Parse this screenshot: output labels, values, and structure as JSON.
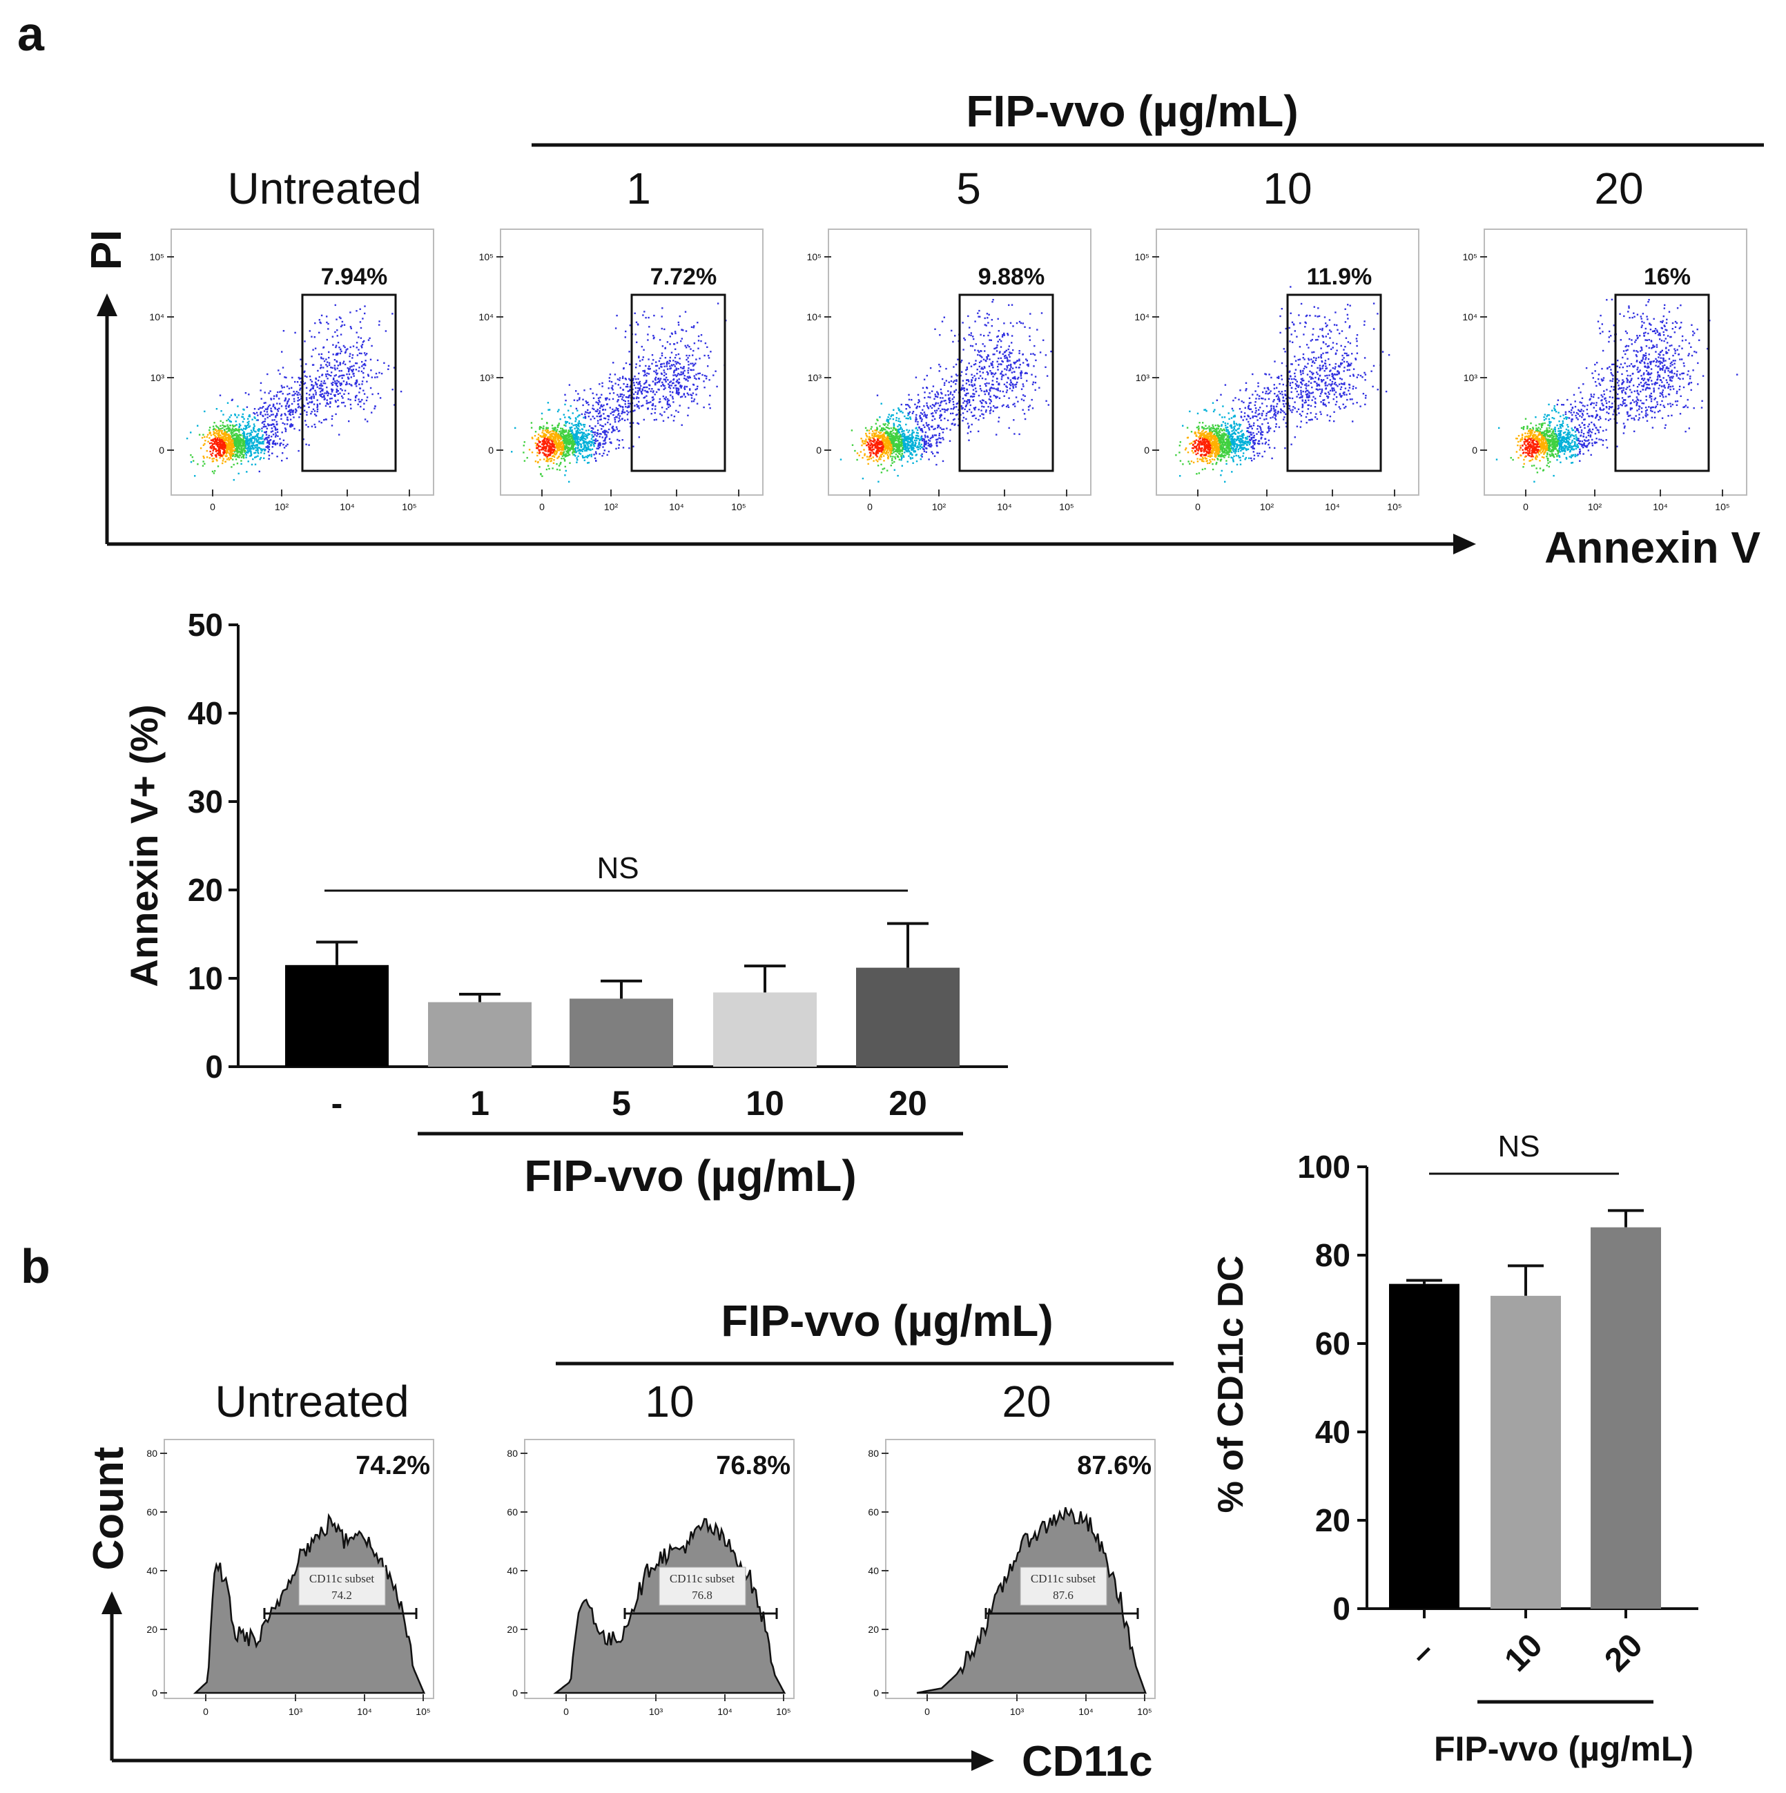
{
  "panel_a": {
    "label": "a",
    "treatment_header": "FIP-vvo (µg/mL)",
    "y_axis": "PI",
    "x_axis": "Annexin V",
    "tick_labels_y": [
      "10⁵",
      "10⁴",
      "10³",
      "0"
    ],
    "tick_labels_x": [
      "0",
      "10²",
      "10⁴",
      "10⁵"
    ],
    "plots": [
      {
        "condition": "Untreated",
        "gate_label": "7.94%"
      },
      {
        "condition": "1",
        "gate_label": "7.72%"
      },
      {
        "condition": "5",
        "gate_label": "9.88%"
      },
      {
        "condition": "10",
        "gate_label": "11.9%"
      },
      {
        "condition": "20",
        "gate_label": "16%"
      }
    ]
  },
  "panel_b": {
    "label": "b",
    "treatment_header": "FIP-vvo (µg/mL)",
    "y_axis": "Count",
    "x_axis": "CD11c",
    "tick_labels_y": [
      "80",
      "60",
      "40",
      "20",
      "0"
    ],
    "tick_labels_x": [
      "0",
      "10³",
      "10⁴",
      "10⁵"
    ],
    "histograms": [
      {
        "condition": "Untreated",
        "percent_label": "74.2%",
        "gate_name": "CD11c subset",
        "gate_value": "74.2"
      },
      {
        "condition": "10",
        "percent_label": "76.8%",
        "gate_name": "CD11c subset",
        "gate_value": "76.8"
      },
      {
        "condition": "20",
        "percent_label": "87.6%",
        "gate_name": "CD11c subset",
        "gate_value": "87.6"
      }
    ]
  },
  "chart_data": [
    {
      "type": "bar",
      "title": "",
      "ylabel": "Annexin V+ (%)",
      "xlabel": "FIP-vvo (µg/mL)",
      "categories": [
        "-",
        "1",
        "5",
        "10",
        "20"
      ],
      "values": [
        11.5,
        7.3,
        7.7,
        8.4,
        11.2
      ],
      "errors": [
        2.6,
        0.9,
        2.0,
        3.0,
        5.0
      ],
      "colors": [
        "#000000",
        "#a3a3a3",
        "#7f7f7f",
        "#d3d3d3",
        "#595959"
      ],
      "ylim": [
        0,
        50
      ],
      "yticks": [
        "0",
        "10",
        "20",
        "30",
        "40",
        "50"
      ],
      "significance": "NS"
    },
    {
      "type": "bar",
      "title": "",
      "ylabel": "% of CD11c DC",
      "xlabel": "FIP-vvo (µg/mL)",
      "categories": [
        "–",
        "10",
        "20"
      ],
      "values": [
        73.5,
        70.8,
        86.3
      ],
      "errors": [
        0.8,
        6.8,
        3.8
      ],
      "colors": [
        "#000000",
        "#a3a3a3",
        "#7f7f7f"
      ],
      "ylim": [
        0,
        100
      ],
      "yticks": [
        "0",
        "20",
        "40",
        "60",
        "80",
        "100"
      ],
      "significance": "NS"
    }
  ]
}
